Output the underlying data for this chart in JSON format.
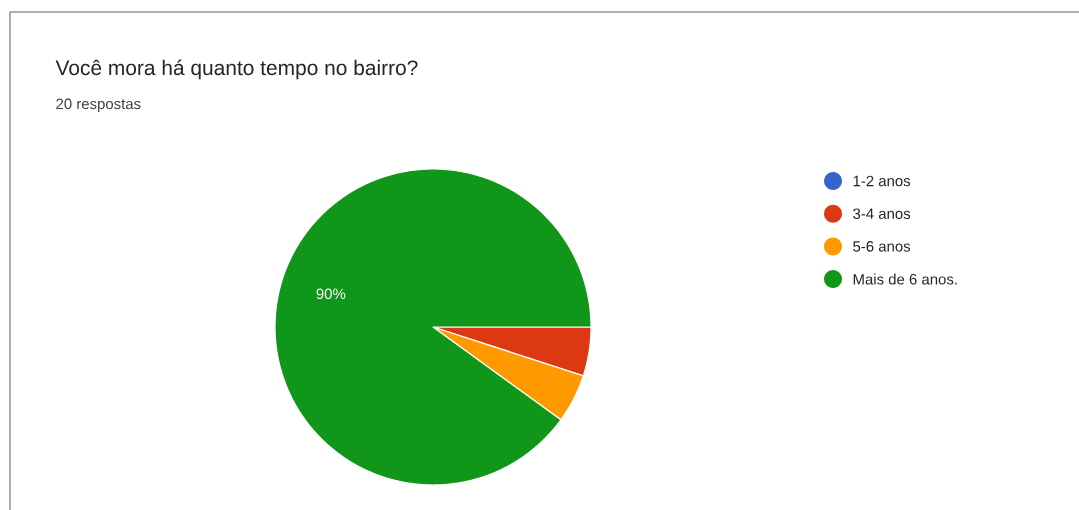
{
  "chart_data": {
    "type": "pie",
    "title": "Você mora há quanto tempo no bairro?",
    "subtitle": "20 respostas",
    "categories": [
      "1-2 anos",
      "3-4 anos",
      "5-6 anos",
      "Mais de 6 anos."
    ],
    "values": [
      0,
      5,
      5,
      90
    ],
    "colors": [
      "#3366cc",
      "#dc3912",
      "#ff9900",
      "#109618"
    ],
    "value_labels": [
      null,
      null,
      null,
      "90%"
    ],
    "legend": "right"
  }
}
